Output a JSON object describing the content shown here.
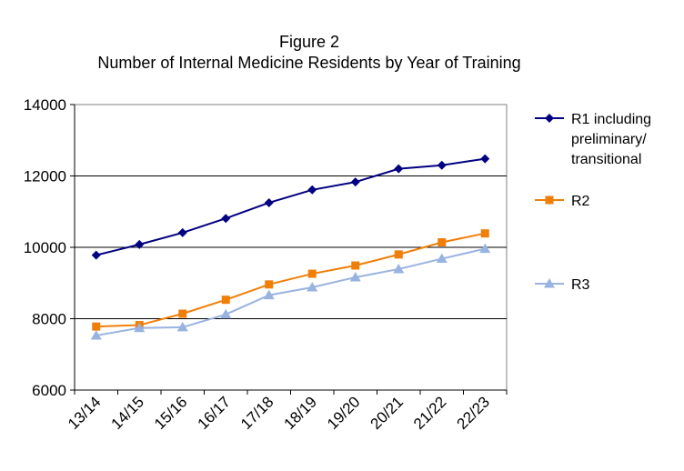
{
  "chart_data": {
    "type": "line",
    "title": "Figure 2",
    "subtitle": "Number of Internal Medicine Residents by Year of Training",
    "xlabel": "",
    "ylabel": "",
    "categories": [
      "13/14",
      "14/15",
      "15/16",
      "16/17",
      "17/18",
      "18/19",
      "19/20",
      "20/21",
      "21/22",
      "22/23"
    ],
    "ylim": [
      6000,
      14000
    ],
    "yticks": [
      6000,
      8000,
      10000,
      12000,
      14000
    ],
    "grid": "horizontal",
    "legend": "right",
    "series": [
      {
        "name": "R1 including preliminary/ transitional",
        "name_lines": [
          "R1 including",
          "preliminary/",
          "transitional"
        ],
        "color": "#000080",
        "marker": "diamond",
        "values": [
          9780,
          10080,
          10410,
          10810,
          11250,
          11610,
          11830,
          12200,
          12300,
          12480
        ]
      },
      {
        "name": "R2",
        "name_lines": [
          "R2"
        ],
        "color": "#F07F09",
        "marker": "square",
        "values": [
          7780,
          7820,
          8140,
          8530,
          8960,
          9260,
          9490,
          9800,
          10140,
          10390
        ]
      },
      {
        "name": "R3",
        "name_lines": [
          "R3"
        ],
        "color": "#99B3E0",
        "marker": "triangle",
        "values": [
          7530,
          7740,
          7760,
          8120,
          8660,
          8880,
          9160,
          9390,
          9680,
          9960
        ]
      }
    ]
  }
}
